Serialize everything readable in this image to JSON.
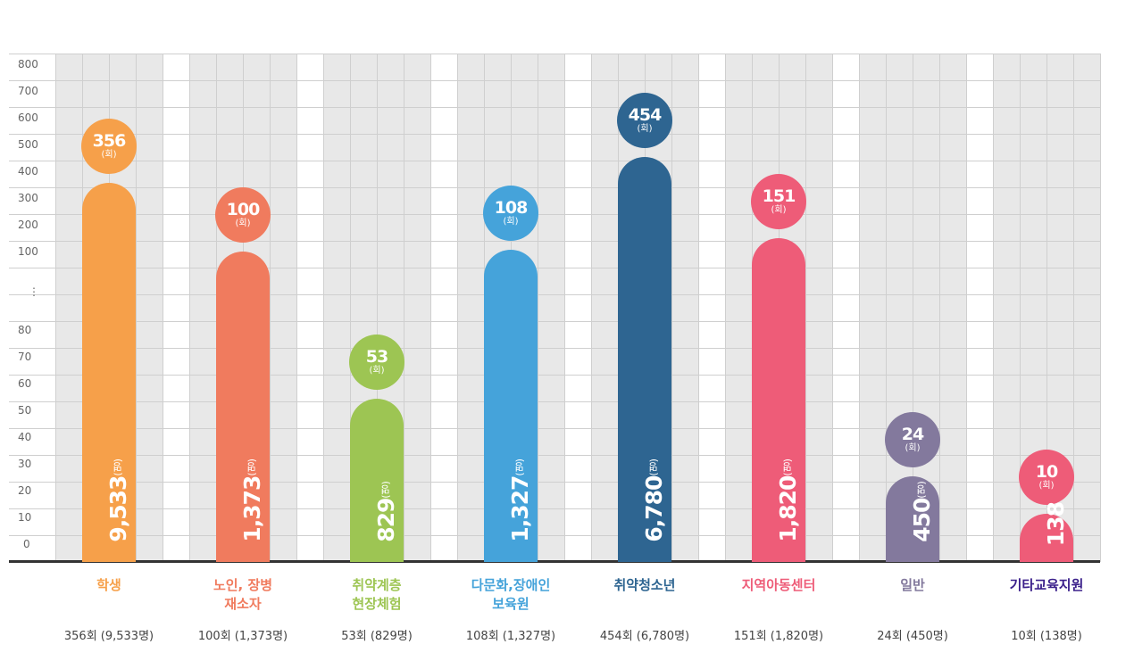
{
  "chart_data": {
    "type": "bar",
    "yticks_upper": [
      "800",
      "700",
      "600",
      "500",
      "400",
      "300",
      "200",
      "100"
    ],
    "ytick_break": "⋮",
    "yticks_lower": [
      "80",
      "70",
      "60",
      "50",
      "40",
      "30",
      "20",
      "10",
      "0"
    ],
    "count_unit": "(회)",
    "people_unit": "(명)",
    "categories": [
      {
        "label": "학생",
        "sessions": 356,
        "sessions_label": "356",
        "people_label": "9,533",
        "summary": "356회 (9,533명)",
        "color": "#F6A04A",
        "label_color": "#F6A04A"
      },
      {
        "label": "노인, 장병\n재소자",
        "sessions": 100,
        "sessions_label": "100",
        "people_label": "1,373",
        "summary": "100회 (1,373명)",
        "color": "#F07B5E",
        "label_color": "#F07B5E"
      },
      {
        "label": "취약계층\n현장체험",
        "sessions": 53,
        "sessions_label": "53",
        "people_label": "829",
        "summary": "53회 (829명)",
        "color": "#9DC553",
        "label_color": "#9DC553"
      },
      {
        "label": "다문화,장애인\n보육원",
        "sessions": 108,
        "sessions_label": "108",
        "people_label": "1,327",
        "summary": "108회 (1,327명)",
        "color": "#45A3DA",
        "label_color": "#45A3DA"
      },
      {
        "label": "취약청소년",
        "sessions": 454,
        "sessions_label": "454",
        "people_label": "6,780",
        "summary": "454회 (6,780명)",
        "color": "#2E6591",
        "label_color": "#2E6591"
      },
      {
        "label": "지역아동센터",
        "sessions": 151,
        "sessions_label": "151",
        "people_label": "1,820",
        "summary": "151회 (1,820명)",
        "color": "#EE5C78",
        "label_color": "#EE5C78"
      },
      {
        "label": "일반",
        "sessions": 24,
        "sessions_label": "24",
        "people_label": "450",
        "summary": "24회 (450명)",
        "color": "#83799D",
        "label_color": "#83799D"
      },
      {
        "label": "기타교육지원",
        "sessions": 10,
        "sessions_label": "10",
        "people_label": "138",
        "summary": "10회 (138명)",
        "color": "#EE5C78",
        "label_color": "#3A1F8A"
      }
    ]
  }
}
